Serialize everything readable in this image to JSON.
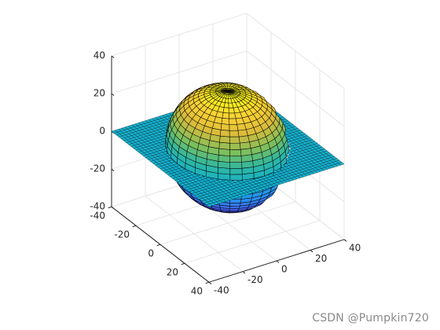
{
  "chart_data": {
    "type": "surface3d",
    "title": "",
    "xlabel": "",
    "ylabel": "",
    "zlabel": "",
    "xlim": [
      -40,
      40
    ],
    "ylim": [
      -40,
      40
    ],
    "zlim": [
      -40,
      40
    ],
    "x_ticks": [
      "-40",
      "-20",
      "0",
      "20",
      "40"
    ],
    "y_ticks": [
      "-40",
      "-20",
      "0",
      "20",
      "40"
    ],
    "z_ticks": [
      "-40",
      "-20",
      "0",
      "20",
      "40"
    ],
    "grid": true,
    "colormap": "parula",
    "view": "3D default (az -37.5, el 30)",
    "surfaces": [
      {
        "kind": "sphere",
        "center": [
          0,
          0,
          0
        ],
        "radius": 30,
        "mesh": "32x32 faces",
        "edge_color": "#000000"
      },
      {
        "kind": "plane",
        "equation": "z = 0",
        "extent": {
          "x": [
            -40,
            40
          ],
          "y": [
            -40,
            40
          ]
        },
        "mesh": "fine grid",
        "edge_color": "#000000"
      }
    ]
  },
  "colors": {
    "parula_low": "#3e26a8",
    "parula_mid": "#2eb7a0",
    "parula_high": "#f9fb15",
    "axis": "#262626",
    "grid": "#e6e6e6"
  },
  "watermark": "CSDN @Pumpkin720"
}
